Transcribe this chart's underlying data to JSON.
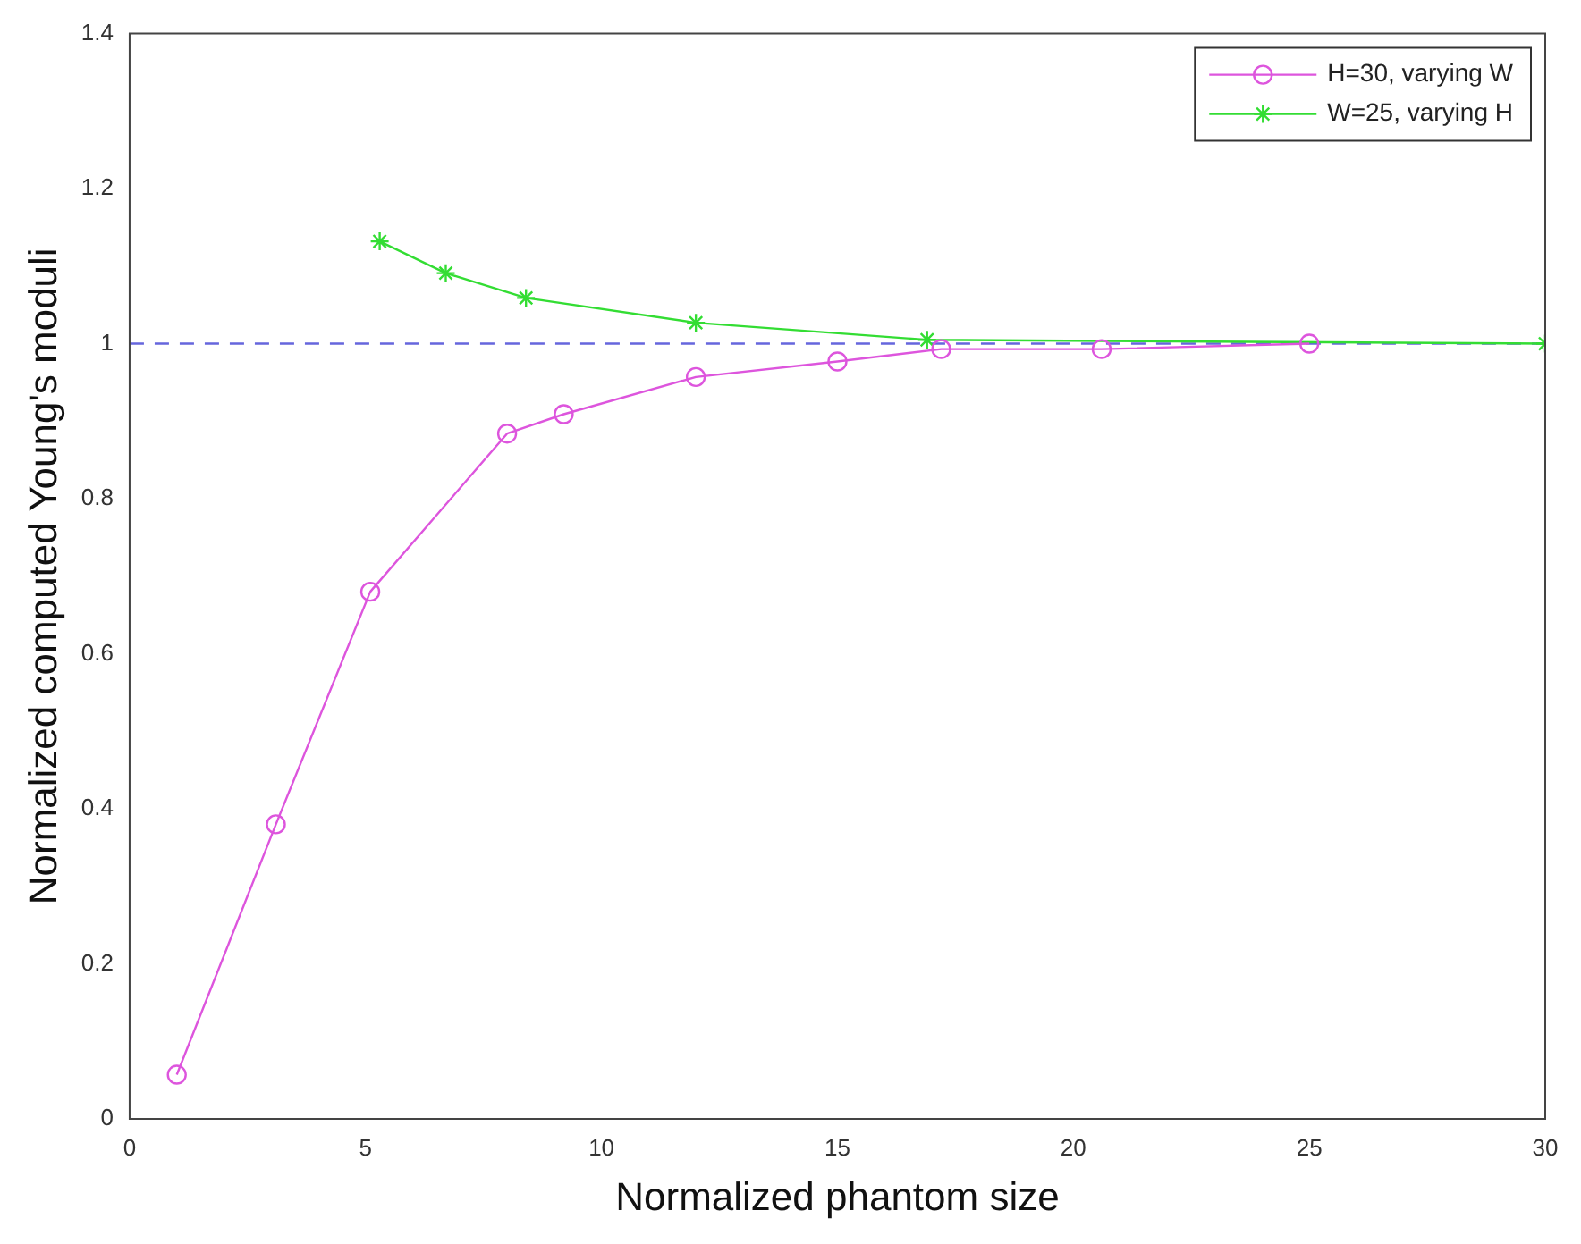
{
  "chart_data": {
    "type": "line",
    "xlabel": "Normalized phantom size",
    "ylabel": "Normalized computed Young's moduli",
    "xlim": [
      0,
      30
    ],
    "xticks": [
      0,
      5,
      10,
      15,
      20,
      25,
      30
    ],
    "ylim": [
      0,
      1.4
    ],
    "yticks": [
      0,
      0.2,
      0.4,
      0.6,
      0.8,
      1,
      1.2,
      1.4
    ],
    "grid": false,
    "legend": "top right",
    "series": [
      {
        "name": "H=30, varying W",
        "color": "#dd55dd",
        "marker": "circle",
        "x": [
          1,
          3.1,
          5.1,
          8,
          9.2,
          12,
          15,
          17.2,
          20.6,
          25
        ],
        "values": [
          0.057,
          0.38,
          0.68,
          0.884,
          0.909,
          0.957,
          0.977,
          0.993,
          0.993,
          1
        ]
      },
      {
        "name": "W=25, varying H",
        "color": "#33dd33",
        "marker": "cross",
        "x": [
          5.3,
          6.7,
          8.4,
          12,
          16.9,
          30
        ],
        "values": [
          1.132,
          1.091,
          1.059,
          1.027,
          1.005,
          1
        ]
      }
    ],
    "ref_lines": [
      {
        "axis": "y",
        "value": 1,
        "color": "#6666dd",
        "line_style": "dashed"
      }
    ]
  }
}
